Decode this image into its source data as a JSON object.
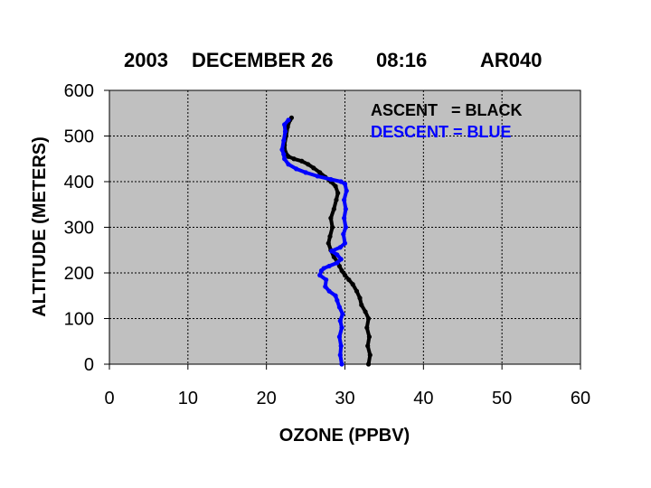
{
  "chart_data": {
    "type": "line",
    "title_parts": [
      "2003",
      "DECEMBER 26",
      "08:16",
      "AR040"
    ],
    "xlabel": "OZONE (PPBV)",
    "ylabel": "ALTITUDE (METERS)",
    "xlim": [
      0,
      60
    ],
    "ylim": [
      0,
      600
    ],
    "xticks": [
      0,
      10,
      20,
      30,
      40,
      50,
      60
    ],
    "yticks": [
      0,
      100,
      200,
      300,
      400,
      500,
      600
    ],
    "grid": true,
    "plot_background": "#c0c0c0",
    "legend_placement": "top-right",
    "series": [
      {
        "name": "ASCENT   = BLACK",
        "color": "#000000",
        "points": [
          [
            33,
            0
          ],
          [
            33.2,
            20
          ],
          [
            32.9,
            40
          ],
          [
            33.1,
            60
          ],
          [
            32.8,
            80
          ],
          [
            33,
            100
          ],
          [
            32.6,
            115
          ],
          [
            32.1,
            130
          ],
          [
            31.9,
            145
          ],
          [
            31.5,
            160
          ],
          [
            31,
            175
          ],
          [
            30.5,
            185
          ],
          [
            30,
            195
          ],
          [
            29.6,
            205
          ],
          [
            29.3,
            215
          ],
          [
            29,
            225
          ],
          [
            28.6,
            235
          ],
          [
            28.2,
            250
          ],
          [
            27.9,
            265
          ],
          [
            28.1,
            280
          ],
          [
            28.4,
            300
          ],
          [
            28.2,
            320
          ],
          [
            28.6,
            340
          ],
          [
            28.9,
            360
          ],
          [
            29.1,
            375
          ],
          [
            28.8,
            390
          ],
          [
            28.2,
            400
          ],
          [
            27.5,
            410
          ],
          [
            26.8,
            420
          ],
          [
            26,
            430
          ],
          [
            25.3,
            438
          ],
          [
            24.5,
            445
          ],
          [
            23.5,
            450
          ],
          [
            22.8,
            455
          ],
          [
            22.4,
            465
          ],
          [
            22.3,
            480
          ],
          [
            22.5,
            500
          ],
          [
            22.7,
            520
          ],
          [
            23,
            535
          ],
          [
            23.2,
            540
          ]
        ]
      },
      {
        "name": "DESCENT = BLUE",
        "color": "#0000ff",
        "points": [
          [
            29.6,
            0
          ],
          [
            29.4,
            20
          ],
          [
            29.5,
            40
          ],
          [
            29.3,
            60
          ],
          [
            29.6,
            80
          ],
          [
            29.4,
            95
          ],
          [
            29.7,
            110
          ],
          [
            29.3,
            125
          ],
          [
            29,
            140
          ],
          [
            28.8,
            150
          ],
          [
            28,
            160
          ],
          [
            27.5,
            170
          ],
          [
            27.6,
            185
          ],
          [
            26.8,
            195
          ],
          [
            27,
            205
          ],
          [
            27.3,
            210
          ],
          [
            28,
            215
          ],
          [
            29,
            222
          ],
          [
            29.5,
            230
          ],
          [
            29,
            240
          ],
          [
            28.3,
            248
          ],
          [
            29.4,
            256
          ],
          [
            30,
            265
          ],
          [
            29.8,
            285
          ],
          [
            30.1,
            300
          ],
          [
            29.9,
            320
          ],
          [
            30.1,
            340
          ],
          [
            29.9,
            360
          ],
          [
            30.2,
            380
          ],
          [
            30,
            395
          ],
          [
            29.5,
            400
          ],
          [
            28.2,
            405
          ],
          [
            26.5,
            412
          ],
          [
            25,
            420
          ],
          [
            23.8,
            428
          ],
          [
            22.8,
            438
          ],
          [
            22.3,
            450
          ],
          [
            22.2,
            460
          ],
          [
            22,
            470
          ],
          [
            22.2,
            490
          ],
          [
            22.4,
            510
          ],
          [
            22.3,
            525
          ],
          [
            22.8,
            535
          ]
        ]
      }
    ]
  }
}
